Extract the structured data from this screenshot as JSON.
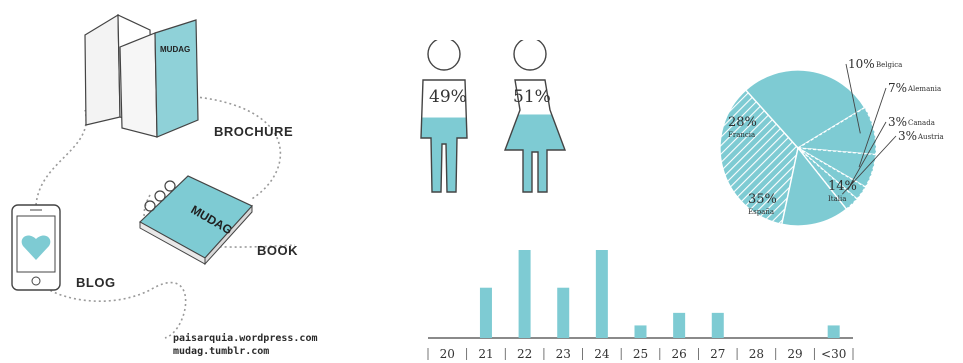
{
  "colors": {
    "accent": "#7ecbd3",
    "ink": "#3a3a3a",
    "outline": "#444444",
    "paper": "#f2f2f2"
  },
  "left": {
    "brochure_label": "BROCHURE",
    "book_label": "BOOK",
    "blog_label": "BLOG",
    "brochure_brand": "MUDAG",
    "book_brand": "MUDAG",
    "url_1": "paisarquia.wordpress.com",
    "url_2": "mudag.tumblr.com",
    "icons": [
      "brochure-icon",
      "book-icon",
      "phone-icon",
      "heart-icon"
    ]
  },
  "gender": {
    "male_pct": "49%",
    "female_pct": "51%",
    "male_fill": 0.49,
    "female_fill": 0.51
  },
  "chart_data": [
    {
      "type": "pie",
      "labels": [
        "España",
        "Francia",
        "Belgica",
        "Alemania",
        "Canada",
        "Austria",
        "Italia"
      ],
      "values": [
        35,
        28,
        10,
        7,
        3,
        3,
        14
      ],
      "display": [
        {
          "pct": "35%",
          "name": "España"
        },
        {
          "pct": "28%",
          "name": "Francia"
        },
        {
          "pct": "10%",
          "name": "Belgica"
        },
        {
          "pct": "7%",
          "name": "Alemania"
        },
        {
          "pct": "3%",
          "name": "Canada"
        },
        {
          "pct": "3%",
          "name": "Austria"
        },
        {
          "pct": "14%",
          "name": "Italia"
        }
      ]
    },
    {
      "type": "bar",
      "categories": [
        "20",
        "21",
        "22",
        "23",
        "24",
        "25",
        "26",
        "27",
        "28",
        "29",
        "<30"
      ],
      "values": [
        0,
        4,
        7,
        4,
        7,
        1,
        2,
        2,
        0,
        0,
        1
      ],
      "ylim": [
        0,
        7
      ],
      "grid": false
    }
  ]
}
